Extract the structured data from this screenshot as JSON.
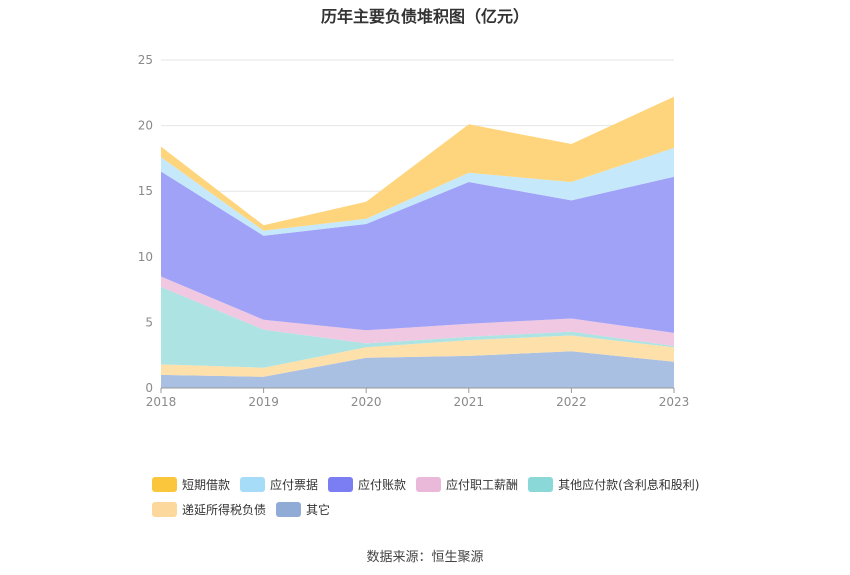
{
  "chart_data": {
    "type": "area",
    "stacked": true,
    "title": "历年主要负债堆积图（亿元）",
    "x": [
      "2018",
      "2019",
      "2020",
      "2021",
      "2022",
      "2023"
    ],
    "ylim": [
      0,
      25
    ],
    "yticks": [
      0,
      5,
      10,
      15,
      20,
      25
    ],
    "grid": true,
    "legend_position": "bottom",
    "series": [
      {
        "name": "其它",
        "color": "#a9c0e2",
        "legend_color": "#90acd6",
        "values": [
          1.0,
          0.85,
          2.3,
          2.45,
          2.8,
          2.0
        ]
      },
      {
        "name": "递延所得税负债",
        "color": "#fde0aa",
        "legend_color": "#fdd89c",
        "values": [
          0.8,
          0.7,
          0.8,
          1.2,
          1.2,
          1.1
        ]
      },
      {
        "name": "其他应付款(含利息和股利)",
        "color": "#aee3e3",
        "legend_color": "#8ad8d8",
        "values": [
          5.9,
          2.9,
          0.3,
          0.25,
          0.3,
          0.1
        ]
      },
      {
        "name": "应付职工薪酬",
        "color": "#f0c8e2",
        "legend_color": "#eab9d9",
        "values": [
          0.8,
          0.75,
          1.0,
          1.0,
          1.0,
          1.0
        ]
      },
      {
        "name": "应付账款",
        "color": "#a0a2f8",
        "legend_color": "#7b7ef2",
        "values": [
          8.0,
          6.4,
          8.1,
          10.8,
          9.0,
          11.9
        ]
      },
      {
        "name": "应付票据",
        "color": "#c5e8fa",
        "legend_color": "#a7dcf8",
        "values": [
          1.1,
          0.4,
          0.4,
          0.7,
          1.4,
          2.2
        ]
      },
      {
        "name": "短期借款",
        "color": "#fed57c",
        "legend_color": "#fcc63c",
        "values": [
          0.8,
          0.4,
          1.3,
          3.7,
          2.9,
          3.9
        ]
      }
    ]
  },
  "legend": {
    "rows": [
      [
        {
          "label": "短期借款",
          "series": 6
        },
        {
          "label": "应付票据",
          "series": 5
        },
        {
          "label": "应付账款",
          "series": 4
        },
        {
          "label": "应付职工薪酬",
          "series": 3
        },
        {
          "label": "其他应付款(含利息和股利)",
          "series": 2
        }
      ],
      [
        {
          "label": "递延所得税负债",
          "series": 1
        },
        {
          "label": "其它",
          "series": 0
        }
      ]
    ]
  },
  "source": "数据来源：恒生聚源"
}
